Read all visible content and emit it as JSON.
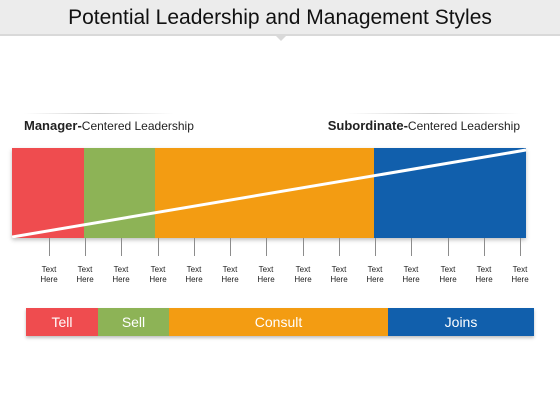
{
  "title": "Potential Leadership and Management Styles",
  "left_label": {
    "bold": "Manager-",
    "rest": "Centered Leadership"
  },
  "right_label": {
    "bold": "Subordinate-",
    "rest": "Centered Leadership"
  },
  "colors": {
    "red": "#ef4c4f",
    "green": "#8db356",
    "orange": "#f39c12",
    "blue": "#115fac"
  },
  "tick_label": "Text Here",
  "tick_count": 14,
  "styles": [
    "Tell",
    "Sell",
    "Consult",
    "Joins"
  ]
}
